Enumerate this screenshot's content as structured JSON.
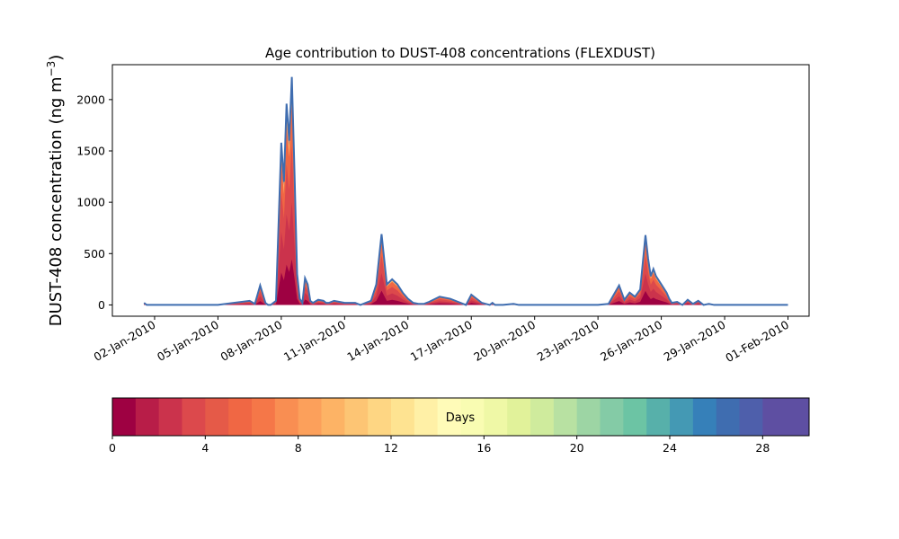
{
  "chart_data": {
    "type": "area",
    "title": "Age contribution to DUST-408 concentrations (FLEXDUST)",
    "ylabel": "DUST-408 concentration (ng m",
    "ylabel_sup": "−3",
    "ylabel_close": ")",
    "xlabel": "",
    "xlim": [
      "2009-12-31",
      "2010-02-02"
    ],
    "ylim": [
      -110,
      2340
    ],
    "yticks": [
      0,
      500,
      1000,
      1500,
      2000
    ],
    "xticks": [
      "02-Jan-2010",
      "05-Jan-2010",
      "08-Jan-2010",
      "11-Jan-2010",
      "14-Jan-2010",
      "17-Jan-2010",
      "20-Jan-2010",
      "23-Jan-2010",
      "26-Jan-2010",
      "29-Jan-2010",
      "01-Feb-2010"
    ],
    "xtick_dates": [
      "2010-01-02",
      "2010-01-05",
      "2010-01-08",
      "2010-01-11",
      "2010-01-14",
      "2010-01-17",
      "2010-01-20",
      "2010-01-23",
      "2010-01-26",
      "2010-01-29",
      "2010-02-01"
    ],
    "grid": false,
    "stacked_by": "age in days (0–30), colored with Spectral colormap",
    "series": [
      {
        "name": "Days",
        "x": [
          "2010-01-01 12:00",
          "2010-01-01 15:00",
          "2010-01-02 00:00",
          "2010-01-05 00:00",
          "2010-01-06 12:00",
          "2010-01-06 18:00",
          "2010-01-07 00:00",
          "2010-01-07 06:00",
          "2010-01-07 09:00",
          "2010-01-07 12:00",
          "2010-01-07 18:00",
          "2010-01-08 00:00",
          "2010-01-08 03:00",
          "2010-01-08 06:00",
          "2010-01-08 09:00",
          "2010-01-08 12:00",
          "2010-01-08 15:00",
          "2010-01-08 18:00",
          "2010-01-08 21:00",
          "2010-01-09 00:00",
          "2010-01-09 03:00",
          "2010-01-09 06:00",
          "2010-01-09 09:00",
          "2010-01-09 12:00",
          "2010-01-09 18:00",
          "2010-01-10 00:00",
          "2010-01-10 03:00",
          "2010-01-10 06:00",
          "2010-01-10 12:00",
          "2010-01-10 18:00",
          "2010-01-11 00:00",
          "2010-01-11 12:00",
          "2010-01-11 18:00",
          "2010-01-12 06:00",
          "2010-01-12 12:00",
          "2010-01-12 18:00",
          "2010-01-13 00:00",
          "2010-01-13 06:00",
          "2010-01-13 12:00",
          "2010-01-13 18:00",
          "2010-01-14 00:00",
          "2010-01-14 06:00",
          "2010-01-14 12:00",
          "2010-01-14 18:00",
          "2010-01-15 00:00",
          "2010-01-15 12:00",
          "2010-01-16 00:00",
          "2010-01-16 12:00",
          "2010-01-16 18:00",
          "2010-01-17 00:00",
          "2010-01-17 12:00",
          "2010-01-17 21:00",
          "2010-01-18 00:00",
          "2010-01-18 03:00",
          "2010-01-18 12:00",
          "2010-01-19 00:00",
          "2010-01-19 06:00",
          "2010-01-19 12:00",
          "2010-01-20 00:00",
          "2010-01-23 00:00",
          "2010-01-23 12:00",
          "2010-01-24 00:00",
          "2010-01-24 06:00",
          "2010-01-24 12:00",
          "2010-01-24 18:00",
          "2010-01-25 00:00",
          "2010-01-25 06:00",
          "2010-01-25 09:00",
          "2010-01-25 12:00",
          "2010-01-25 15:00",
          "2010-01-25 18:00",
          "2010-01-26 00:00",
          "2010-01-26 06:00",
          "2010-01-26 09:00",
          "2010-01-26 12:00",
          "2010-01-26 18:00",
          "2010-01-27 00:00",
          "2010-01-27 06:00",
          "2010-01-27 12:00",
          "2010-01-27 18:00",
          "2010-01-28 00:00",
          "2010-01-28 06:00",
          "2010-01-28 12:00",
          "2010-01-28 18:00",
          "2010-01-29 00:00",
          "2010-01-29 12:00",
          "2010-02-01 00:00"
        ],
        "y": [
          20,
          0,
          0,
          0,
          40,
          10,
          190,
          20,
          0,
          0,
          40,
          1580,
          1200,
          1960,
          1600,
          2220,
          1300,
          300,
          60,
          20,
          260,
          200,
          40,
          20,
          50,
          40,
          20,
          20,
          40,
          30,
          20,
          20,
          0,
          40,
          200,
          690,
          200,
          250,
          200,
          120,
          60,
          20,
          10,
          10,
          30,
          80,
          60,
          20,
          0,
          100,
          20,
          0,
          20,
          0,
          0,
          10,
          0,
          0,
          0,
          0,
          10,
          190,
          50,
          120,
          80,
          150,
          680,
          450,
          280,
          350,
          280,
          200,
          120,
          60,
          20,
          30,
          0,
          50,
          10,
          40,
          0,
          10,
          0,
          0,
          0,
          0,
          0
        ]
      }
    ],
    "colorbar": {
      "label": "Days",
      "range": [
        0,
        30
      ],
      "ticks": [
        0,
        4,
        8,
        12,
        16,
        20,
        24,
        28
      ],
      "colors": [
        "#9e0142",
        "#b81d48",
        "#cb334c",
        "#dc494c",
        "#e55a48",
        "#f06744",
        "#f57748",
        "#f98e52",
        "#fca05b",
        "#fdb365",
        "#fdc574",
        "#fed683",
        "#fee391",
        "#fff0a6",
        "#fffbb8",
        "#f9fcb2",
        "#eff8a6",
        "#e1f29a",
        "#cfeb9d",
        "#b8e1a2",
        "#9dd5a4",
        "#84cba6",
        "#6cc4a4",
        "#57b0aa",
        "#4499b4",
        "#3680b9",
        "#3f6db0",
        "#4e5fab",
        "#5e4fa2",
        "#5e4fa2"
      ]
    }
  }
}
